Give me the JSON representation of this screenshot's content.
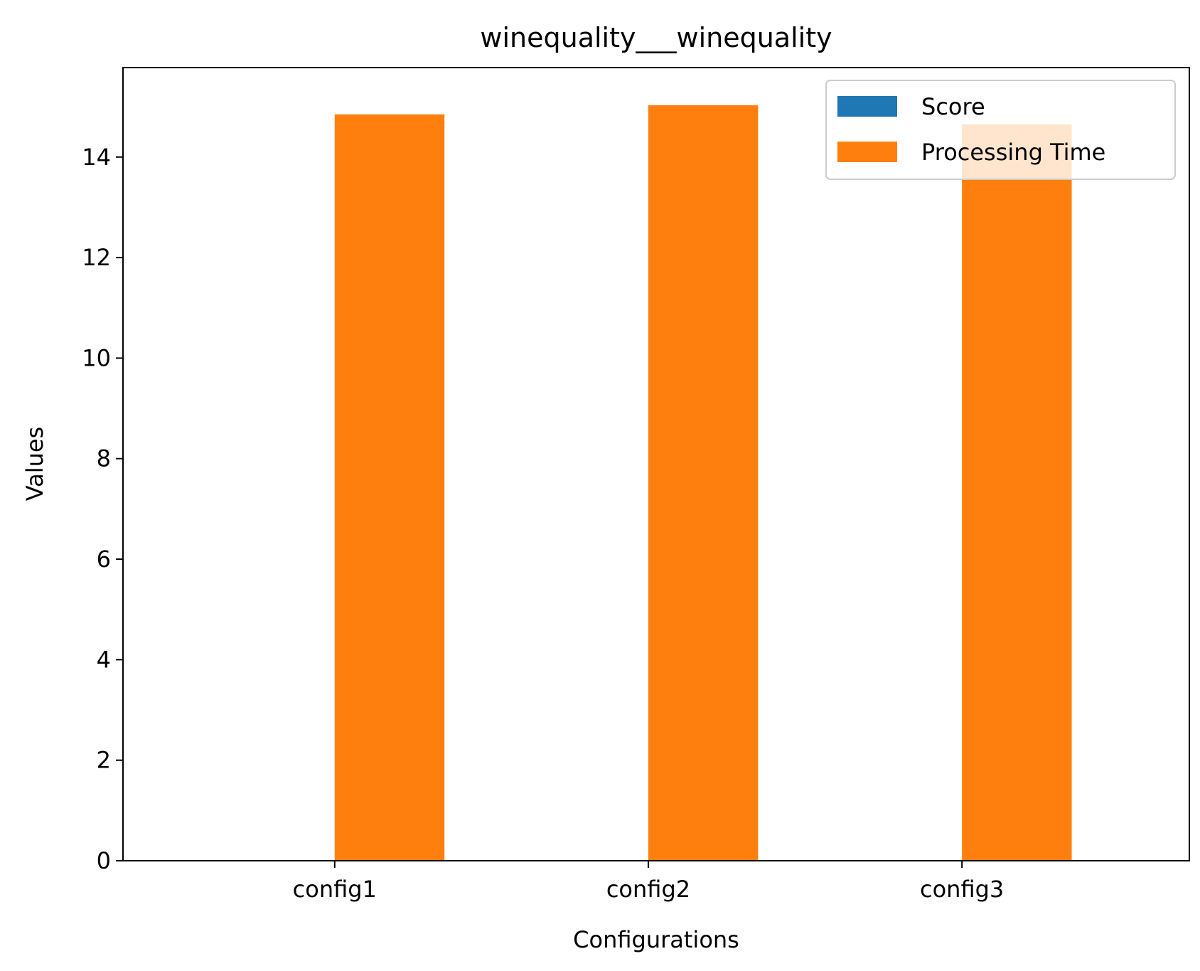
{
  "chart_data": {
    "type": "bar",
    "title": "winequality___winequality",
    "xlabel": "Configurations",
    "ylabel": "Values",
    "categories": [
      "config1",
      "config2",
      "config3"
    ],
    "series": [
      {
        "name": "Score",
        "color": "#1f77b4",
        "values": [
          0,
          0,
          0
        ]
      },
      {
        "name": "Processing Time",
        "color": "#ff7f0e",
        "values": [
          14.85,
          15.03,
          14.65
        ]
      }
    ],
    "ylim": [
      0,
      15.78
    ],
    "yticks": [
      0,
      2,
      4,
      6,
      8,
      10,
      12,
      14
    ],
    "ytick_labels": [
      "0",
      "2",
      "4",
      "6",
      "8",
      "10",
      "12",
      "14"
    ],
    "grid": false,
    "legend": {
      "placement": "top-right",
      "entries": [
        "Score",
        "Processing Time"
      ]
    }
  }
}
